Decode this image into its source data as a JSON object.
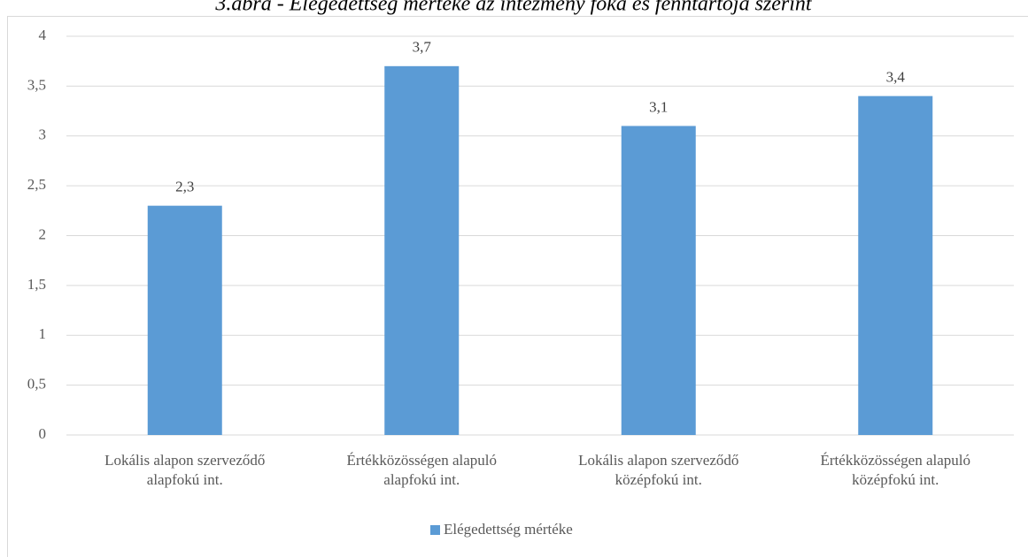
{
  "chart_data": {
    "type": "bar",
    "title": "3.ábra - Elégedettség mértéke az intézmény foka és fenntartója szerint",
    "categories": [
      "Lokális alapon szerveződő\nalapfokú int.",
      "Értékközösségen alapuló\nalapfokú int.",
      "Lokális alapon szerveződő\nközépfokú int.",
      "Értékközösségen alapuló\nközépfokú int."
    ],
    "series": [
      {
        "name": "Elégedettség mértéke",
        "color": "#5b9bd5",
        "values": [
          2.3,
          3.7,
          3.1,
          3.4
        ],
        "value_labels": [
          "2,3",
          "3,7",
          "3,1",
          "3,4"
        ]
      }
    ],
    "ylim": [
      0,
      4
    ],
    "yticks": [
      0,
      {
        "value": 0.5,
        "label": "0,5"
      },
      1,
      {
        "value": 1.5,
        "label": "1,5"
      },
      2,
      {
        "value": 2.5,
        "label": "2,5"
      },
      3,
      {
        "value": 3.5,
        "label": "3,5"
      },
      4
    ],
    "grid": true,
    "legend": "bottom"
  }
}
